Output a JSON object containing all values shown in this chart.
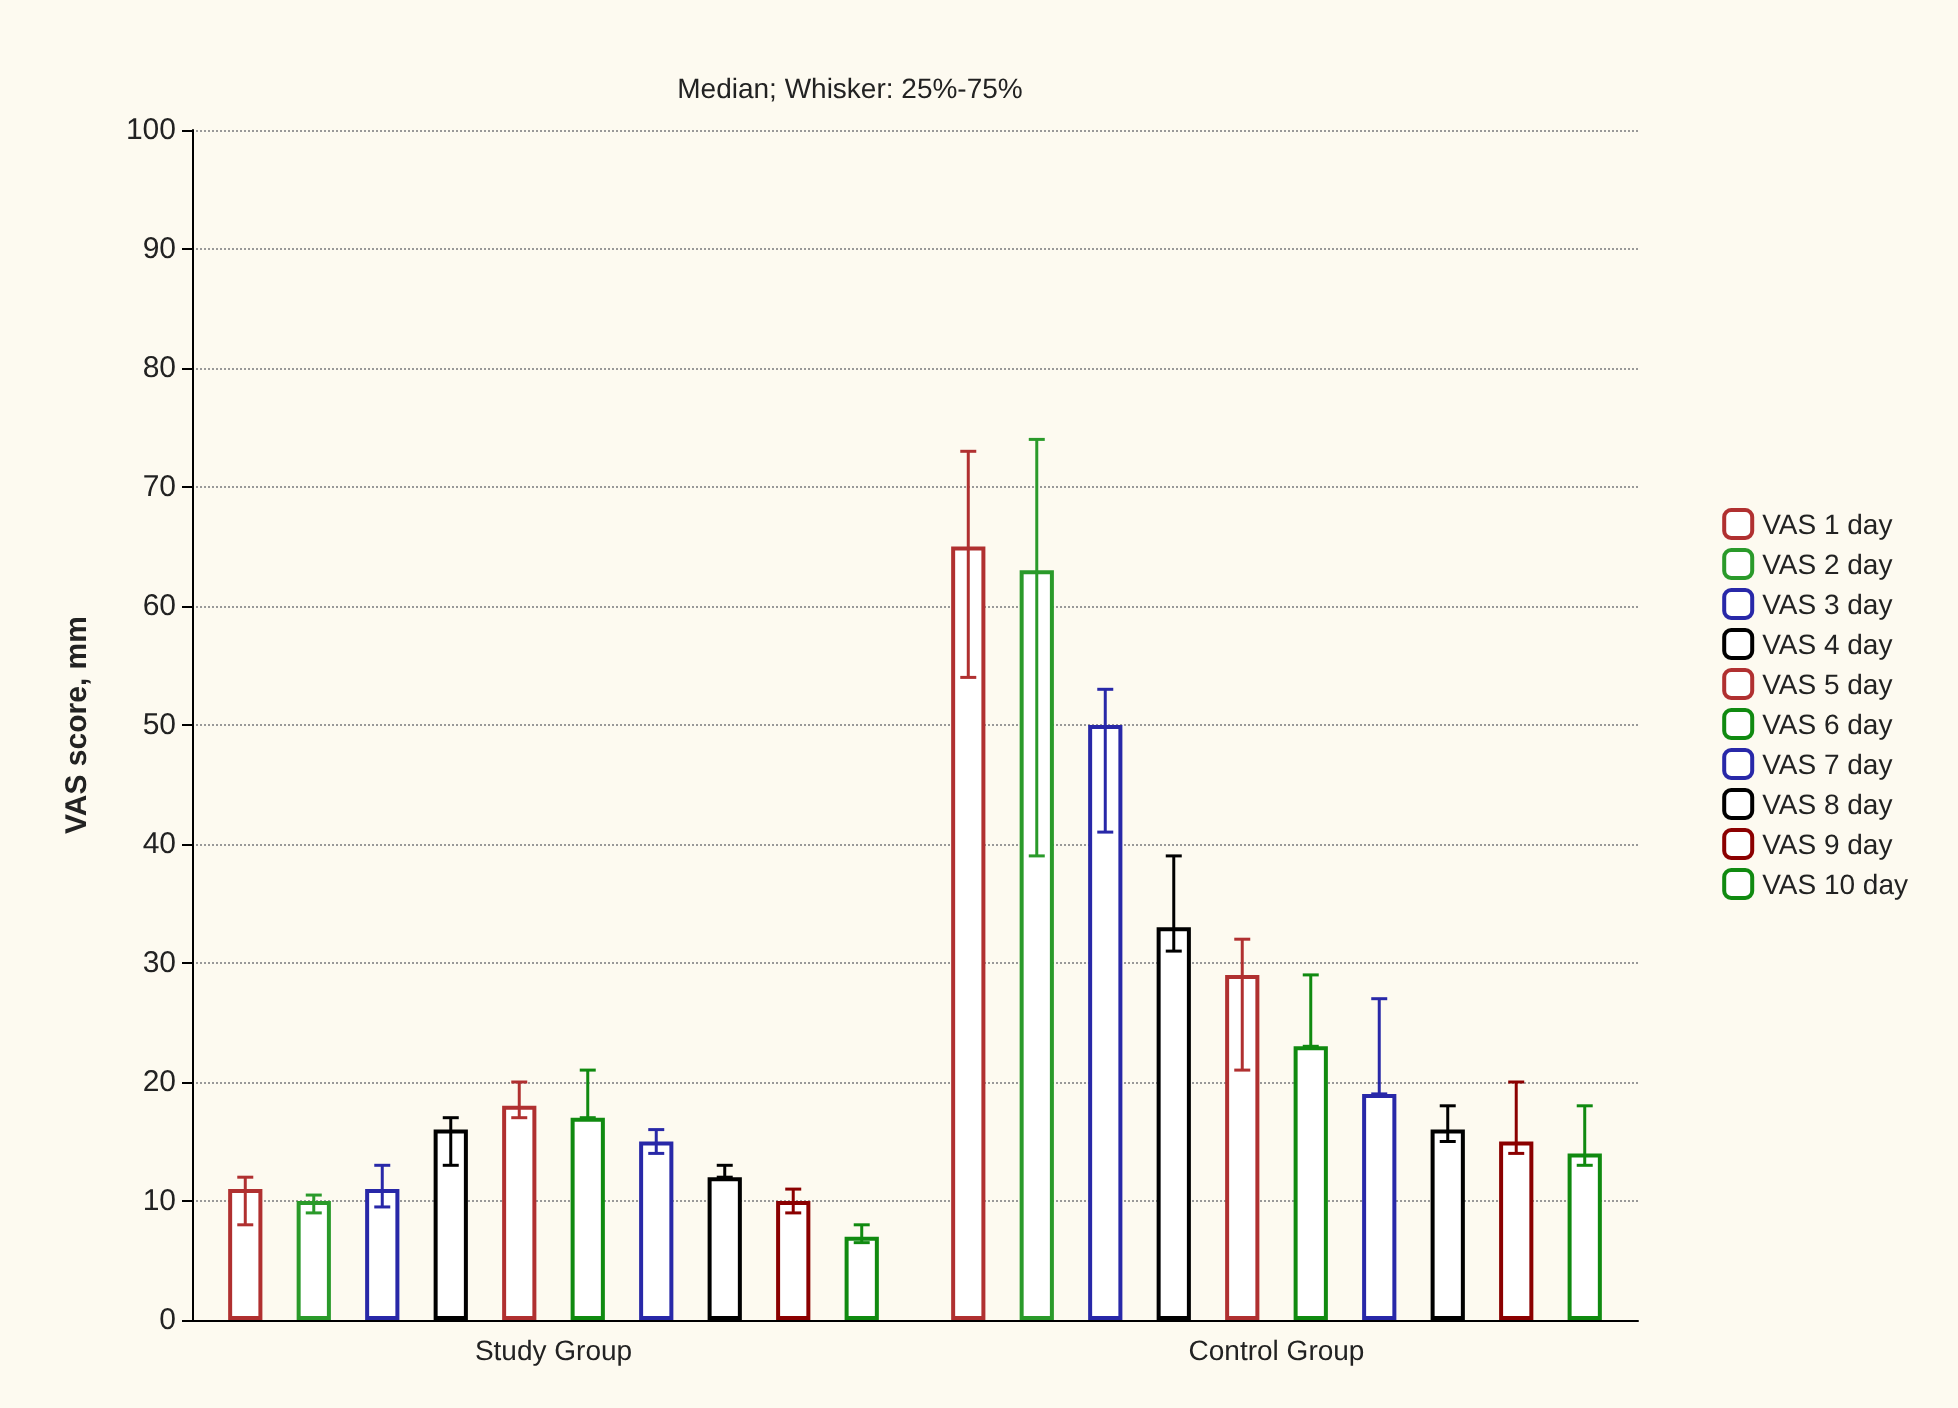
{
  "chart_data": {
    "type": "bar",
    "title": "Median; Whisker: 25%-75%",
    "ylabel": "VAS score, mm",
    "categories": [
      "Study Group",
      "Control Group"
    ],
    "series": [
      {
        "name": "VAS 1 day",
        "color": "#b03030",
        "values": [
          11,
          65
        ],
        "errors": [
          [
            8,
            12
          ],
          [
            54,
            73
          ]
        ]
      },
      {
        "name": "VAS 2 day",
        "color": "#2a9a2a",
        "values": [
          10,
          63
        ],
        "errors": [
          [
            9,
            10.5
          ],
          [
            39,
            74
          ]
        ]
      },
      {
        "name": "VAS 3 day",
        "color": "#2828a8",
        "values": [
          11,
          50
        ],
        "errors": [
          [
            9.5,
            13
          ],
          [
            41,
            53
          ]
        ]
      },
      {
        "name": "VAS 4 day",
        "color": "#000000",
        "values": [
          16,
          33
        ],
        "errors": [
          [
            13,
            17
          ],
          [
            31,
            39
          ]
        ]
      },
      {
        "name": "VAS 5 day",
        "color": "#b03030",
        "values": [
          18,
          29
        ],
        "errors": [
          [
            17,
            20
          ],
          [
            21,
            32
          ]
        ]
      },
      {
        "name": "VAS 6 day",
        "color": "#108a10",
        "values": [
          17,
          23
        ],
        "errors": [
          [
            17,
            21
          ],
          [
            23,
            29
          ]
        ]
      },
      {
        "name": "VAS 7 day",
        "color": "#2828a8",
        "values": [
          15,
          19
        ],
        "errors": [
          [
            14,
            16
          ],
          [
            19,
            27
          ]
        ]
      },
      {
        "name": "VAS 8 day",
        "color": "#000000",
        "values": [
          12,
          16
        ],
        "errors": [
          [
            12,
            13
          ],
          [
            15,
            18
          ]
        ]
      },
      {
        "name": "VAS 9 day",
        "color": "#8b0000",
        "values": [
          10,
          15
        ],
        "errors": [
          [
            9,
            11
          ],
          [
            14,
            20
          ]
        ]
      },
      {
        "name": "VAS 10 day",
        "color": "#108a10",
        "values": [
          7,
          14
        ],
        "errors": [
          [
            6.5,
            8
          ],
          [
            13,
            18
          ]
        ]
      }
    ],
    "ylim": [
      0,
      100
    ],
    "yticks": [
      0,
      10,
      20,
      30,
      40,
      50,
      60,
      70,
      80,
      90,
      100
    ],
    "grid": "y",
    "legend": "right"
  }
}
